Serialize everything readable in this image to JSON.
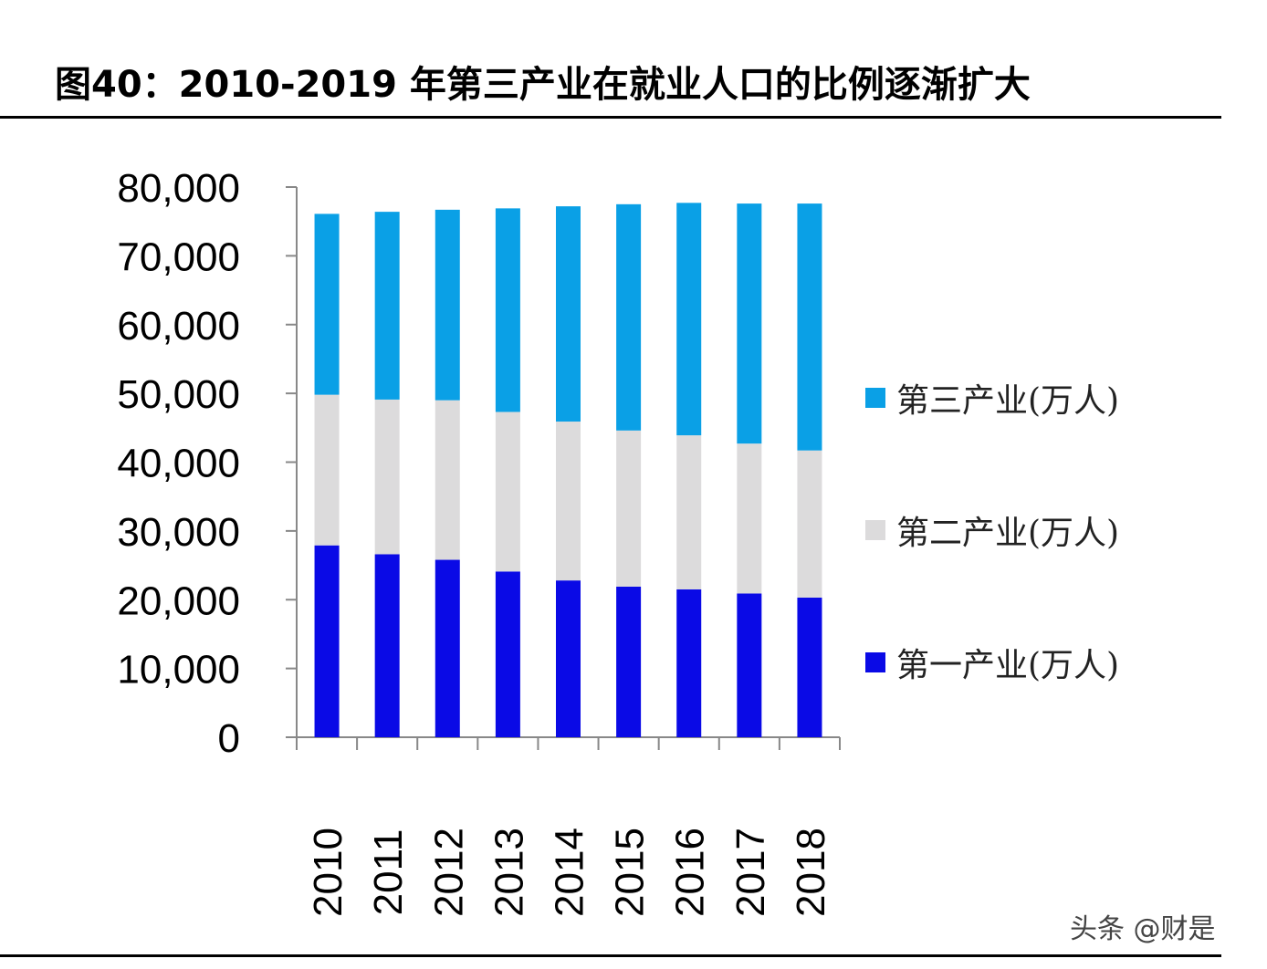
{
  "title": "图40：2010-2019 年第三产业在就业人口的比例逐渐扩大",
  "watermark": "头条 @财是",
  "chart_data": {
    "type": "bar",
    "stacked": true,
    "categories": [
      "2010",
      "2011",
      "2012",
      "2013",
      "2014",
      "2015",
      "2016",
      "2017",
      "2018"
    ],
    "series": [
      {
        "name": "第一产业(万人)",
        "color": "#0a0ae6",
        "values": [
          27900,
          26600,
          25800,
          24100,
          22800,
          21900,
          21500,
          20900,
          20300
        ]
      },
      {
        "name": "第二产业(万人)",
        "color": "#dcdbdc",
        "values": [
          21900,
          22500,
          23200,
          23200,
          23100,
          22700,
          22400,
          21800,
          21400
        ]
      },
      {
        "name": "第三产业(万人)",
        "color": "#0aa0e6",
        "values": [
          26300,
          27300,
          27700,
          29600,
          31300,
          32900,
          33800,
          34900,
          35900
        ]
      }
    ],
    "ylim": [
      0,
      80000
    ],
    "yticks": [
      "0",
      "10,000",
      "20,000",
      "30,000",
      "40,000",
      "50,000",
      "60,000",
      "70,000",
      "80,000"
    ],
    "ytick_values": [
      0,
      10000,
      20000,
      30000,
      40000,
      50000,
      60000,
      70000,
      80000
    ],
    "legend_position": "right",
    "legend_order": [
      2,
      1,
      0
    ],
    "grid": false
  }
}
